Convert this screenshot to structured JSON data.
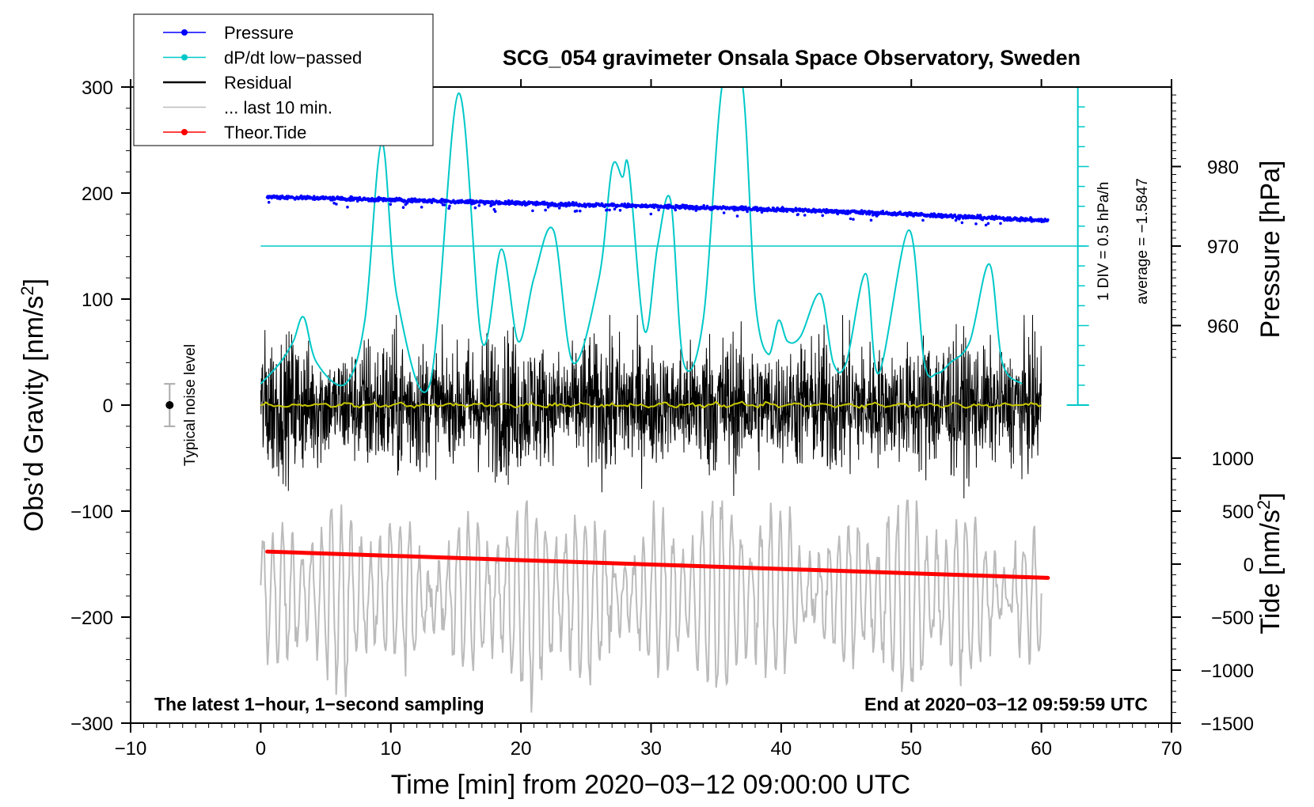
{
  "chart_data": {
    "type": "line",
    "title": "SCG_054 gravimeter Onsala Space Observatory, Sweden",
    "xlabel": "Time [min] from 2020−03−12 09:00:00 UTC",
    "ylabel_left": "Obs’d Gravity [nm/s",
    "ylabel_left_sup": "2",
    "ylabel_left_close": "]",
    "ylabel_right_pressure": "Pressure [hPa]",
    "ylabel_right_tide": "Tide [nm/s",
    "ylabel_right_tide_sup": "2",
    "ylabel_right_tide_close": "]",
    "xlim": [
      -10,
      70
    ],
    "ylim": [
      -300,
      300
    ],
    "x_ticks": [
      -10,
      0,
      10,
      20,
      30,
      40,
      50,
      60,
      70
    ],
    "x_tick_labels": [
      "−10",
      "0",
      "10",
      "20",
      "30",
      "40",
      "50",
      "60",
      "70"
    ],
    "y_ticks": [
      300,
      200,
      100,
      0,
      -100,
      -200,
      -300
    ],
    "y_tick_labels": [
      "300",
      "200",
      "100",
      "0",
      "−100",
      "−200",
      "−300"
    ],
    "pressure_ticks": [
      980,
      970,
      960
    ],
    "pressure_tick_labels": [
      "980",
      "970",
      "960"
    ],
    "pressure_range": [
      955,
      990
    ],
    "tide_ticks": [
      1000,
      500,
      0,
      -500,
      -1000,
      -1500
    ],
    "tide_tick_labels": [
      "1000",
      "500",
      "0",
      "−500",
      "−1000",
      "−1500"
    ],
    "tide_range": [
      -1500,
      1500
    ],
    "legend": [
      {
        "label": "Pressure",
        "color": "#0000ff",
        "marker": true
      },
      {
        "label": "dP/dt low−passed",
        "color": "#00c8c8",
        "marker": true
      },
      {
        "label": "Residual",
        "color": "#000000",
        "marker": false
      },
      {
        "label": "... last 10 min.",
        "color": "#bbbbbb",
        "marker": false
      },
      {
        "label": "Theor.Tide",
        "color": "#ff0000",
        "marker": true
      }
    ],
    "legend_position": "top-left",
    "series": [
      {
        "name": "Pressure",
        "unit": "hPa",
        "color": "#0000ff",
        "x": [
          0.5,
          10,
          20,
          30,
          40,
          50,
          60.5
        ],
        "values": [
          976.2,
          975.8,
          975.4,
          975.0,
          974.6,
          974.0,
          973.2
        ]
      },
      {
        "name": "dP/dt low-passed (gravity-axis units)",
        "color": "#00c8c8",
        "x": [
          0.0,
          1.5,
          2.5,
          3.3,
          4.3,
          6.5,
          8.0,
          9.3,
          10.5,
          13.0,
          15.2,
          17.0,
          18.5,
          19.8,
          21.0,
          22.5,
          24.0,
          26.0,
          27.0,
          27.8,
          28.3,
          29.5,
          30.5,
          31.5,
          32.5,
          34.0,
          35.5,
          37.0,
          38.0,
          39.0,
          39.8,
          40.5,
          41.5,
          43.0,
          44.0,
          45.0,
          46.5,
          47.5,
          49.8,
          51.0,
          52.0,
          53.0,
          54.5,
          56.0,
          57.0,
          58.5
        ],
        "values": [
          20,
          40,
          60,
          83,
          40,
          20,
          80,
          247,
          100,
          20,
          294,
          60,
          147,
          60,
          120,
          165,
          40,
          120,
          224,
          215,
          222,
          70,
          150,
          193,
          40,
          80,
          305,
          305,
          100,
          48,
          80,
          60,
          65,
          105,
          40,
          40,
          124,
          30,
          165,
          40,
          30,
          40,
          60,
          133,
          40,
          20
        ]
      },
      {
        "name": "Residual",
        "color": "#000000",
        "x_range": [
          0,
          60
        ],
        "amplitude": 40,
        "values_summary": "noise around 0 nm/s², peaks ~±85"
      },
      {
        "name": "Residual (smoothed)",
        "color": "#c8c800",
        "x": [
          0,
          60
        ],
        "values": [
          0,
          0
        ]
      },
      {
        "name": "... last 10 min.",
        "color": "#bbbbbb",
        "x_range": [
          0,
          60
        ],
        "values_summary": "oscillation around −180 nm/s², amplitude up to ~±120"
      },
      {
        "name": "Theor.Tide",
        "unit": "nm/s²",
        "color": "#ff0000",
        "x": [
          0.5,
          60.5
        ],
        "values": [
          118,
          -130
        ]
      }
    ],
    "noise_bar": {
      "label": "Typical noise level",
      "x": -7,
      "center": 0,
      "low": -20,
      "high": 20
    },
    "dpdt_scale": {
      "label": "1 DIV = 0.5 hPa/h",
      "average_label": "average = −1.5847",
      "zero_level": 150
    },
    "footer_left": "The latest 1−hour, 1−second sampling",
    "footer_right": "End at 2020−03−12 09:59:59 UTC"
  }
}
